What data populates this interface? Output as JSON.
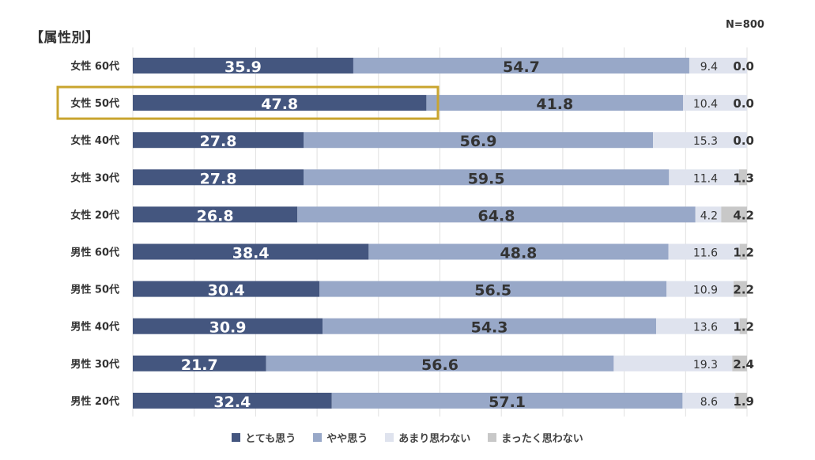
{
  "title": "【属性別】",
  "sample_size": "N=800",
  "colors": {
    "very": "#44567f",
    "somewhat": "#98a8c8",
    "notmuch": "#dfe3ee",
    "notatall": "#c8c8c8",
    "highlight": "#c9a52f",
    "grid": "#e0e0e0"
  },
  "chart_data": {
    "type": "bar",
    "orientation": "horizontal",
    "stacked": true,
    "percent_scale": [
      0,
      100
    ],
    "categories": [
      "女性 60代",
      "女性 50代",
      "女性 40代",
      "女性 30代",
      "女性 20代",
      "男性 60代",
      "男性 50代",
      "男性 40代",
      "男性 30代",
      "男性 20代"
    ],
    "highlighted_category": "女性 50代",
    "series": [
      {
        "name": "とても思う",
        "key": "very",
        "values": [
          35.9,
          47.8,
          27.8,
          27.8,
          26.8,
          38.4,
          30.4,
          30.9,
          21.7,
          32.4
        ]
      },
      {
        "name": "やや思う",
        "key": "somewhat",
        "values": [
          54.7,
          41.8,
          56.9,
          59.5,
          64.8,
          48.8,
          56.5,
          54.3,
          56.6,
          57.1
        ]
      },
      {
        "name": "あまり思わない",
        "key": "notmuch",
        "values": [
          9.4,
          10.4,
          15.3,
          11.4,
          4.2,
          11.6,
          10.9,
          13.6,
          19.3,
          8.6
        ]
      },
      {
        "name": "まったく思わない",
        "key": "notatall",
        "values": [
          0.0,
          0.0,
          0.0,
          1.3,
          4.2,
          1.2,
          2.2,
          1.2,
          2.4,
          1.9
        ]
      }
    ],
    "legend_position": "bottom"
  }
}
